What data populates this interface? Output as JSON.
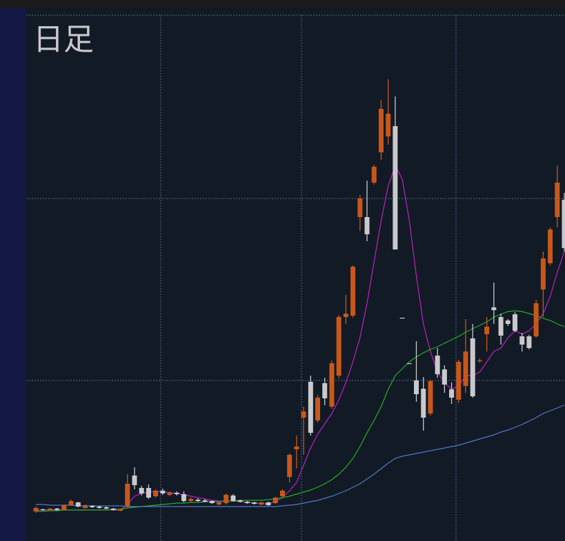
{
  "chart_data": {
    "type": "candlestick",
    "title": "日足",
    "categories": [
      null,
      null,
      null,
      null,
      null,
      null,
      null,
      null,
      null,
      null,
      null,
      null,
      null,
      null,
      null,
      null,
      null,
      null,
      null,
      null,
      null,
      null,
      null,
      null,
      null,
      null,
      null,
      null,
      null,
      null,
      null,
      null,
      null,
      null,
      null,
      null,
      null,
      null,
      null,
      null,
      null,
      null,
      null,
      null,
      null,
      null,
      null,
      null,
      null,
      null,
      null,
      null,
      null,
      null,
      null,
      null,
      null,
      null,
      null,
      null,
      null,
      null,
      null,
      null,
      null,
      null,
      null,
      null,
      null,
      null,
      null,
      null,
      null,
      null,
      null,
      null
    ],
    "open": [
      43,
      46,
      45,
      47,
      45,
      52,
      56,
      48,
      51,
      50,
      49,
      47,
      44,
      50,
      95,
      77,
      77,
      65,
      73,
      67,
      70,
      68,
      58,
      60,
      59,
      58,
      53,
      55,
      66,
      59,
      57,
      56,
      53,
      56,
      55,
      65,
      93,
      133,
      179,
      231,
      175,
      229,
      195,
      240,
      325,
      327,
      470,
      470,
      520,
      564,
      587,
      602,
      324,
      258,
      233,
      221,
      185,
      269,
      249,
      220,
      205,
      225,
      294,
      261,
      300,
      339,
      325,
      320,
      329,
      297,
      297,
      297,
      365,
      403,
      470,
      495
    ],
    "high": [
      50,
      47,
      48,
      48,
      53,
      60,
      57,
      53,
      52,
      51,
      50,
      48,
      47,
      97,
      107,
      80,
      82,
      75,
      76,
      72,
      72,
      72,
      63,
      62,
      61,
      59,
      57,
      69,
      68,
      60,
      58,
      57,
      57,
      57,
      64,
      75,
      127,
      153,
      195,
      240,
      212,
      237,
      262,
      328,
      357,
      400,
      502,
      523,
      546,
      640,
      670,
      645,
      324,
      258,
      290,
      238,
      234,
      280,
      255,
      230,
      263,
      322,
      315,
      265,
      325,
      375,
      330,
      322,
      332,
      302,
      299,
      350,
      420,
      455,
      545,
      505
    ],
    "low": [
      41,
      44,
      44,
      44,
      44,
      51,
      49,
      47,
      48,
      47,
      46,
      44,
      43,
      48,
      75,
      66,
      61,
      63,
      67,
      65,
      66,
      56,
      56,
      57,
      56,
      54,
      52,
      53,
      57,
      56,
      54,
      53,
      52,
      51,
      54,
      64,
      85,
      105,
      125,
      153,
      172,
      197,
      192,
      236,
      315,
      324,
      450,
      435,
      517,
      553,
      575,
      423,
      323,
      257,
      202,
      160,
      182,
      237,
      215,
      199,
      200,
      215,
      208,
      259,
      275,
      315,
      285,
      312,
      303,
      275,
      278,
      295,
      325,
      400,
      455,
      420
    ],
    "close": [
      48,
      45,
      47,
      45,
      52,
      58,
      50,
      52,
      49,
      48,
      47,
      45,
      46,
      83,
      81,
      69,
      63,
      73,
      69,
      70,
      68,
      58,
      61,
      58,
      57,
      55,
      56,
      67,
      58,
      57,
      55,
      54,
      56,
      52,
      63,
      73,
      125,
      137,
      188,
      157,
      208,
      207,
      258,
      325,
      330,
      398,
      497,
      445,
      543,
      627,
      620,
      423,
      323,
      257,
      213,
      179,
      232,
      242,
      227,
      208,
      260,
      275,
      210,
      262,
      311,
      335,
      298,
      315,
      305,
      285,
      280,
      345,
      410,
      452,
      520,
      425
    ],
    "up_color": "#c8581a",
    "down_color": "#c9c9cc",
    "series": [
      {
        "color": "#c21fc2",
        "values": [
          45,
          45,
          45,
          45,
          45,
          45,
          45,
          45,
          45,
          45,
          45,
          45,
          45,
          53,
          65,
          69,
          71,
          72,
          72,
          70,
          69,
          67,
          65,
          63,
          61,
          59,
          58,
          58,
          58,
          57,
          56,
          55,
          54,
          54,
          57,
          63,
          73,
          85,
          110,
          135,
          155,
          170,
          185,
          205,
          230,
          260,
          295,
          345,
          405,
          465,
          515,
          545,
          525,
          465,
          385,
          315,
          275,
          245,
          230,
          220,
          225,
          240,
          240,
          245,
          260,
          275,
          280,
          295,
          305,
          300,
          305,
          315,
          330,
          355,
          390,
          420
        ]
      },
      {
        "color": "#22b322",
        "values": [
          43,
          43,
          44,
          44,
          45,
          45,
          45,
          45,
          45,
          45,
          45,
          46,
          46,
          48,
          49,
          50,
          51,
          52,
          53,
          54,
          55,
          55,
          56,
          56,
          57,
          57,
          57,
          58,
          58,
          59,
          59,
          59,
          59,
          60,
          61,
          63,
          65,
          68,
          71,
          74,
          78,
          83,
          89,
          97,
          107,
          120,
          137,
          157,
          175,
          195,
          220,
          240,
          250,
          260,
          267,
          273,
          278,
          282,
          287,
          292,
          297,
          303,
          308,
          313,
          318,
          325,
          329,
          333,
          334,
          333,
          330,
          327,
          323,
          320,
          315,
          311
        ]
      },
      {
        "color": "#5577cc",
        "values": [
          53,
          53,
          52,
          52,
          52,
          52,
          51,
          51,
          51,
          51,
          51,
          51,
          51,
          50,
          50,
          50,
          50,
          50,
          50,
          50,
          50,
          50,
          50,
          50,
          50,
          50,
          50,
          50,
          50,
          50,
          50,
          50,
          50,
          50,
          50,
          51,
          52,
          53,
          55,
          57,
          59,
          62,
          65,
          69,
          73,
          78,
          83,
          90,
          97,
          105,
          113,
          120,
          123,
          125,
          127,
          129,
          131,
          133,
          135,
          137,
          139,
          142,
          145,
          148,
          151,
          154,
          158,
          161,
          165,
          169,
          174,
          179,
          185,
          189,
          193,
          197
        ]
      }
    ],
    "ylim": [
      0,
      763
    ],
    "yticks": [
      233,
      497,
      763
    ],
    "grid": true
  }
}
